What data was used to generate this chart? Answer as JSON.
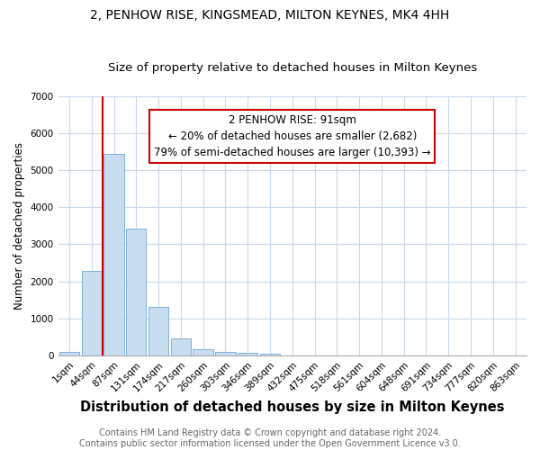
{
  "title": "2, PENHOW RISE, KINGSMEAD, MILTON KEYNES, MK4 4HH",
  "subtitle": "Size of property relative to detached houses in Milton Keynes",
  "xlabel": "Distribution of detached houses by size in Milton Keynes",
  "ylabel": "Number of detached properties",
  "bar_color": "#c9ddf0",
  "bar_edge_color": "#7fb3d9",
  "grid_color": "#c8d8ea",
  "background_color": "#ffffff",
  "ax_background_color": "#ffffff",
  "categories": [
    "1sqm",
    "44sqm",
    "87sqm",
    "131sqm",
    "174sqm",
    "217sqm",
    "260sqm",
    "303sqm",
    "346sqm",
    "389sqm",
    "432sqm",
    "475sqm",
    "518sqm",
    "561sqm",
    "604sqm",
    "648sqm",
    "691sqm",
    "734sqm",
    "777sqm",
    "820sqm",
    "863sqm"
  ],
  "values": [
    100,
    2280,
    5450,
    3420,
    1320,
    450,
    160,
    95,
    75,
    50,
    0,
    0,
    0,
    0,
    0,
    0,
    0,
    0,
    0,
    0,
    0
  ],
  "ylim": [
    0,
    7000
  ],
  "red_line_x": 1.5,
  "annotation_text": "2 PENHOW RISE: 91sqm\n← 20% of detached houses are smaller (2,682)\n79% of semi-detached houses are larger (10,393) →",
  "annotation_box_color": "#ffffff",
  "annotation_border_color": "#cc0000",
  "red_line_color": "#cc0000",
  "footnote": "Contains HM Land Registry data © Crown copyright and database right 2024.\nContains public sector information licensed under the Open Government Licence v3.0.",
  "title_fontsize": 10,
  "subtitle_fontsize": 9.5,
  "xlabel_fontsize": 10.5,
  "ylabel_fontsize": 8.5,
  "tick_fontsize": 7.5,
  "annotation_fontsize": 8.5,
  "footnote_fontsize": 7
}
